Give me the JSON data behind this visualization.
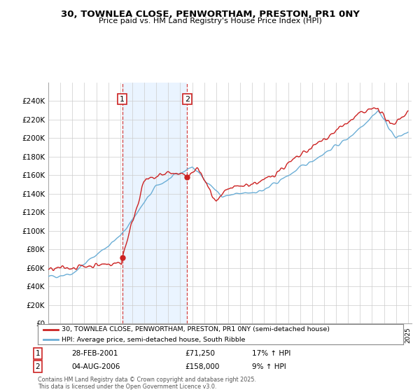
{
  "title": "30, TOWNLEA CLOSE, PENWORTHAM, PRESTON, PR1 0NY",
  "subtitle": "Price paid vs. HM Land Registry's House Price Index (HPI)",
  "legend_line1": "30, TOWNLEA CLOSE, PENWORTHAM, PRESTON, PR1 0NY (semi-detached house)",
  "legend_line2": "HPI: Average price, semi-detached house, South Ribble",
  "annotation1_label": "1",
  "annotation1_date": "28-FEB-2001",
  "annotation1_price": "£71,250",
  "annotation1_hpi": "17% ↑ HPI",
  "annotation2_label": "2",
  "annotation2_date": "04-AUG-2006",
  "annotation2_price": "£158,000",
  "annotation2_hpi": "9% ↑ HPI",
  "footer": "Contains HM Land Registry data © Crown copyright and database right 2025.\nThis data is licensed under the Open Government Licence v3.0.",
  "hpi_color": "#6baed6",
  "price_color": "#cc2222",
  "vline_color": "#cc2222",
  "shade_color": "#ddeeff",
  "ylim": [
    0,
    260000
  ],
  "yticks": [
    0,
    20000,
    40000,
    60000,
    80000,
    100000,
    120000,
    140000,
    160000,
    180000,
    200000,
    220000,
    240000
  ],
  "xstart_year": 1995,
  "xend_year": 2025,
  "sale1_year": 2001.16,
  "sale1_price": 71250,
  "sale2_year": 2006.58,
  "sale2_price": 158000,
  "background_color": "#ffffff",
  "grid_color": "#cccccc"
}
